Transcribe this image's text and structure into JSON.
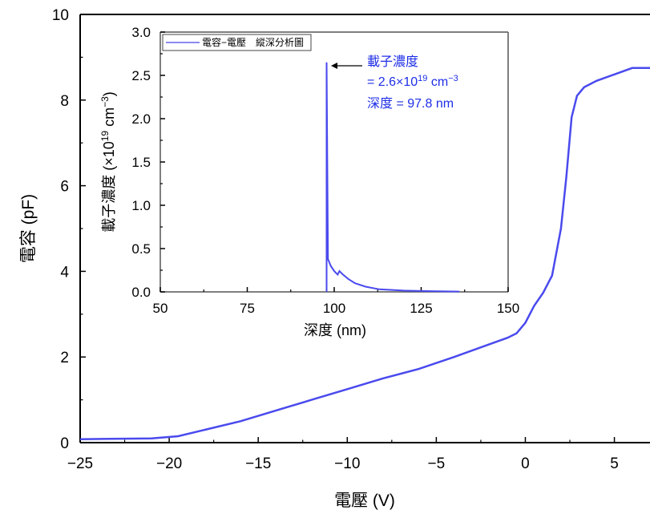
{
  "chart_data": [
    {
      "type": "line",
      "xlabel": "電壓 (V)",
      "ylabel": "電容 (pF)",
      "xlim": [
        -25,
        7
      ],
      "ylim": [
        0,
        10
      ],
      "xticks": [
        -25,
        -20,
        -15,
        -10,
        -5,
        0,
        5
      ],
      "xtick_labels": [
        "−25",
        "−20",
        "−15",
        "−10",
        "−5",
        "0",
        "5"
      ],
      "yticks": [
        0,
        2,
        4,
        6,
        8,
        10
      ],
      "ytick_labels": [
        "0",
        "2",
        "4",
        "6",
        "8",
        "10"
      ],
      "series": [
        {
          "color": "#4a4aee",
          "x": [
            -25,
            -21,
            -19.5,
            -18,
            -16,
            -14,
            -12,
            -10,
            -8,
            -6,
            -4,
            -2,
            -1,
            -0.5,
            0,
            0.5,
            1,
            1.5,
            2,
            2.3,
            2.6,
            2.9,
            3.3,
            4,
            5,
            6,
            7
          ],
          "y": [
            0.08,
            0.1,
            0.15,
            0.3,
            0.5,
            0.75,
            1.0,
            1.25,
            1.5,
            1.72,
            2.0,
            2.3,
            2.45,
            2.55,
            2.8,
            3.2,
            3.5,
            3.9,
            5.0,
            6.2,
            7.6,
            8.1,
            8.3,
            8.45,
            8.6,
            8.75,
            8.75
          ]
        }
      ]
    },
    {
      "type": "line",
      "xlabel": "深度 (nm)",
      "ylabel": "載子濃度 (×10",
      "ylabel_sup": "19",
      "ylabel_tail": " cm",
      "ylabel_sup2": "−3",
      "ylabel_close": ")",
      "xlim": [
        50,
        150
      ],
      "ylim": [
        0,
        3
      ],
      "xticks": [
        50,
        75,
        100,
        125,
        150
      ],
      "xtick_labels": [
        "50",
        "75",
        "100",
        "125",
        "150"
      ],
      "yticks": [
        0,
        0.5,
        1,
        1.5,
        2,
        2.5,
        3
      ],
      "ytick_labels": [
        "0.0",
        "0.5",
        "1.0",
        "1.5",
        "2.0",
        "2.5",
        "3.0"
      ],
      "legend": {
        "position": "top-left",
        "label": "電容−電壓　縱深分析圖"
      },
      "series": [
        {
          "name": "電容−電壓　縱深分析圖",
          "color": "#4a4aee",
          "x": [
            97.8,
            97.8,
            98.2,
            99,
            100,
            101,
            101.5,
            102.5,
            104,
            106,
            109,
            113,
            120,
            128,
            136
          ],
          "y": [
            0,
            2.65,
            0.38,
            0.3,
            0.24,
            0.2,
            0.24,
            0.2,
            0.15,
            0.1,
            0.06,
            0.03,
            0.015,
            0.008,
            0.004
          ]
        }
      ],
      "annotation": {
        "line1": "載子濃度",
        "line2": "= 2.6×10",
        "line2_sup": "19",
        "line2_tail": " cm",
        "line2_sup2": "−3",
        "line3": "深度 = 97.8 nm"
      }
    }
  ]
}
